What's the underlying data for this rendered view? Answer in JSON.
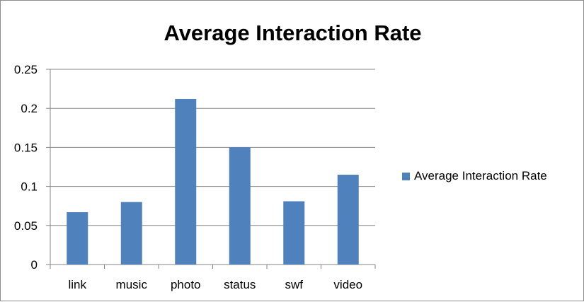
{
  "colors": {
    "bar": "#4F81BD",
    "grid": "#868686",
    "axis": "#868686"
  },
  "chart_data": {
    "type": "bar",
    "title": "Average Interaction Rate",
    "xlabel": "",
    "ylabel": "",
    "categories": [
      "link",
      "music",
      "photo",
      "status",
      "swf",
      "video"
    ],
    "series": [
      {
        "name": "Average Interaction Rate",
        "values": [
          0.067,
          0.08,
          0.212,
          0.15,
          0.081,
          0.115
        ]
      }
    ],
    "ylim": [
      0,
      0.25
    ],
    "yticks": [
      "0",
      "0.05",
      "0.1",
      "0.15",
      "0.2",
      "0.25"
    ],
    "grid": true,
    "legend_position": "right"
  }
}
